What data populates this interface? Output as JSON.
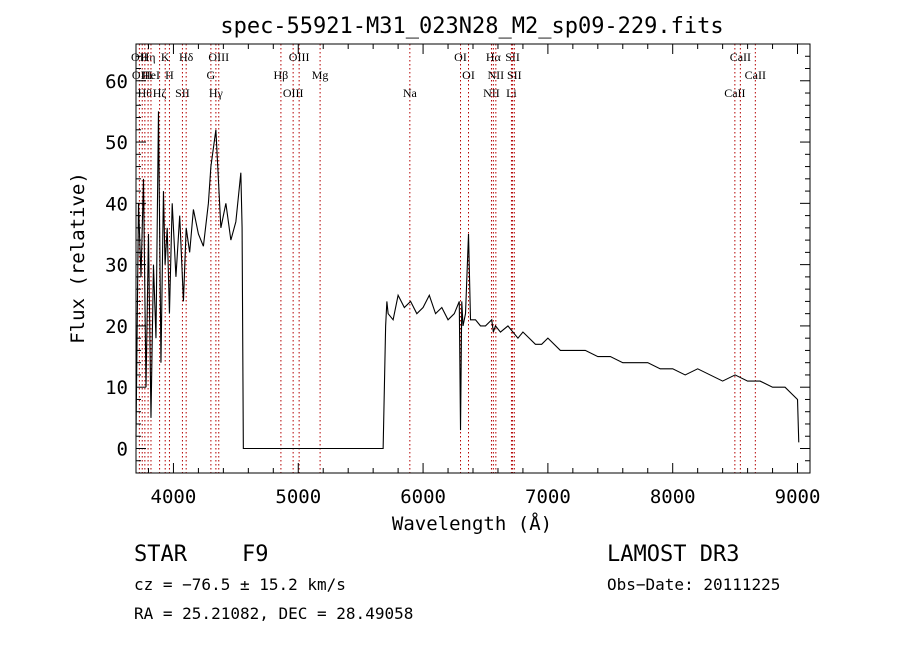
{
  "chart_data": {
    "type": "line",
    "title": "spec-55921-M31_023N28_M2_sp09-229.fits",
    "xlabel": "Wavelength (Å)",
    "ylabel": "Flux (relative)",
    "xlim": [
      3700,
      9100
    ],
    "ylim": [
      -4,
      66
    ],
    "xticks": [
      4000,
      5000,
      6000,
      7000,
      8000,
      9000
    ],
    "yticks": [
      0,
      10,
      20,
      30,
      40,
      50,
      60
    ],
    "grid": false,
    "series": [
      {
        "name": "flux",
        "x": [
          3700,
          3720,
          3740,
          3760,
          3780,
          3800,
          3820,
          3840,
          3860,
          3880,
          3900,
          3920,
          3933,
          3950,
          3968,
          3990,
          4020,
          4050,
          4080,
          4102,
          4130,
          4160,
          4200,
          4240,
          4280,
          4300,
          4340,
          4380,
          4420,
          4460,
          4500,
          4540,
          4550,
          4560,
          5680,
          5690,
          5700,
          5710,
          5720,
          5760,
          5800,
          5850,
          5900,
          5950,
          6000,
          6050,
          6100,
          6150,
          6200,
          6250,
          6290,
          6300,
          6310,
          6320,
          6340,
          6364,
          6380,
          6420,
          6460,
          6500,
          6550,
          6563,
          6580,
          6620,
          6680,
          6720,
          6760,
          6800,
          6850,
          6900,
          6950,
          7000,
          7100,
          7200,
          7300,
          7400,
          7500,
          7600,
          7700,
          7800,
          7900,
          8000,
          8100,
          8200,
          8300,
          8400,
          8500,
          8600,
          8700,
          8800,
          8900,
          8950,
          9000,
          9010
        ],
        "values": [
          2,
          40,
          28,
          44,
          10,
          35,
          5,
          30,
          18,
          55,
          14,
          42,
          30,
          36,
          22,
          40,
          28,
          38,
          24,
          36,
          32,
          39,
          35,
          33,
          40,
          46,
          52,
          36,
          40,
          34,
          37,
          45,
          36,
          0,
          0,
          10,
          20,
          24,
          22,
          21,
          25,
          23,
          24,
          22,
          23,
          25,
          22,
          23,
          21,
          22,
          24,
          3,
          24,
          20,
          22,
          35,
          21,
          21,
          20,
          20,
          21,
          19,
          20,
          19,
          20,
          19,
          18,
          19,
          18,
          17,
          17,
          18,
          16,
          16,
          16,
          15,
          15,
          14,
          14,
          14,
          13,
          13,
          12,
          13,
          12,
          11,
          12,
          11,
          11,
          10,
          10,
          9,
          8,
          1
        ]
      }
    ],
    "line_marks": [
      {
        "x": 3727,
        "labels": [
          "OII"
        ]
      },
      {
        "x": 3750,
        "labels": [
          "OIII"
        ]
      },
      {
        "x": 3771,
        "labels": [
          "Hθ"
        ]
      },
      {
        "x": 3797,
        "labels": [
          "Hη"
        ]
      },
      {
        "x": 3820,
        "labels": [
          "HeI"
        ]
      },
      {
        "x": 3889,
        "labels": [
          "Hζ"
        ]
      },
      {
        "x": 3934,
        "labels": [
          "K"
        ]
      },
      {
        "x": 3968,
        "labels": [
          "H"
        ]
      },
      {
        "x": 4072,
        "labels": [
          "SII"
        ]
      },
      {
        "x": 4102,
        "labels": [
          "Hδ"
        ]
      },
      {
        "x": 4300,
        "labels": [
          "G"
        ]
      },
      {
        "x": 4340,
        "labels": [
          "Hγ"
        ]
      },
      {
        "x": 4363,
        "labels": [
          "OIII"
        ]
      },
      {
        "x": 4861,
        "labels": [
          "Hβ"
        ]
      },
      {
        "x": 4959,
        "labels": [
          "OIII"
        ]
      },
      {
        "x": 5007,
        "labels": [
          "OIII"
        ]
      },
      {
        "x": 5175,
        "labels": [
          "Mg"
        ]
      },
      {
        "x": 5894,
        "labels": [
          "Na"
        ]
      },
      {
        "x": 6300,
        "labels": [
          "OI"
        ]
      },
      {
        "x": 6364,
        "labels": [
          "OI"
        ]
      },
      {
        "x": 6548,
        "labels": [
          "NII"
        ]
      },
      {
        "x": 6563,
        "labels": [
          "Hα"
        ]
      },
      {
        "x": 6583,
        "labels": [
          "NII"
        ]
      },
      {
        "x": 6708,
        "labels": [
          "Li"
        ]
      },
      {
        "x": 6717,
        "labels": [
          "SII"
        ]
      },
      {
        "x": 6731,
        "labels": [
          "SII"
        ]
      },
      {
        "x": 8498,
        "labels": [
          "CaII"
        ]
      },
      {
        "x": 8542,
        "labels": [
          "CaII"
        ]
      },
      {
        "x": 8662,
        "labels": [
          "CaII"
        ]
      }
    ]
  },
  "info": {
    "class": "STAR",
    "subclass": "F9",
    "survey": "LAMOST DR3",
    "cz": "cz = −76.5 ± 15.2 km/s",
    "obs_date": "Obs−Date: 20111225",
    "coords": "RA =  25.21082, DEC =  28.49058"
  }
}
